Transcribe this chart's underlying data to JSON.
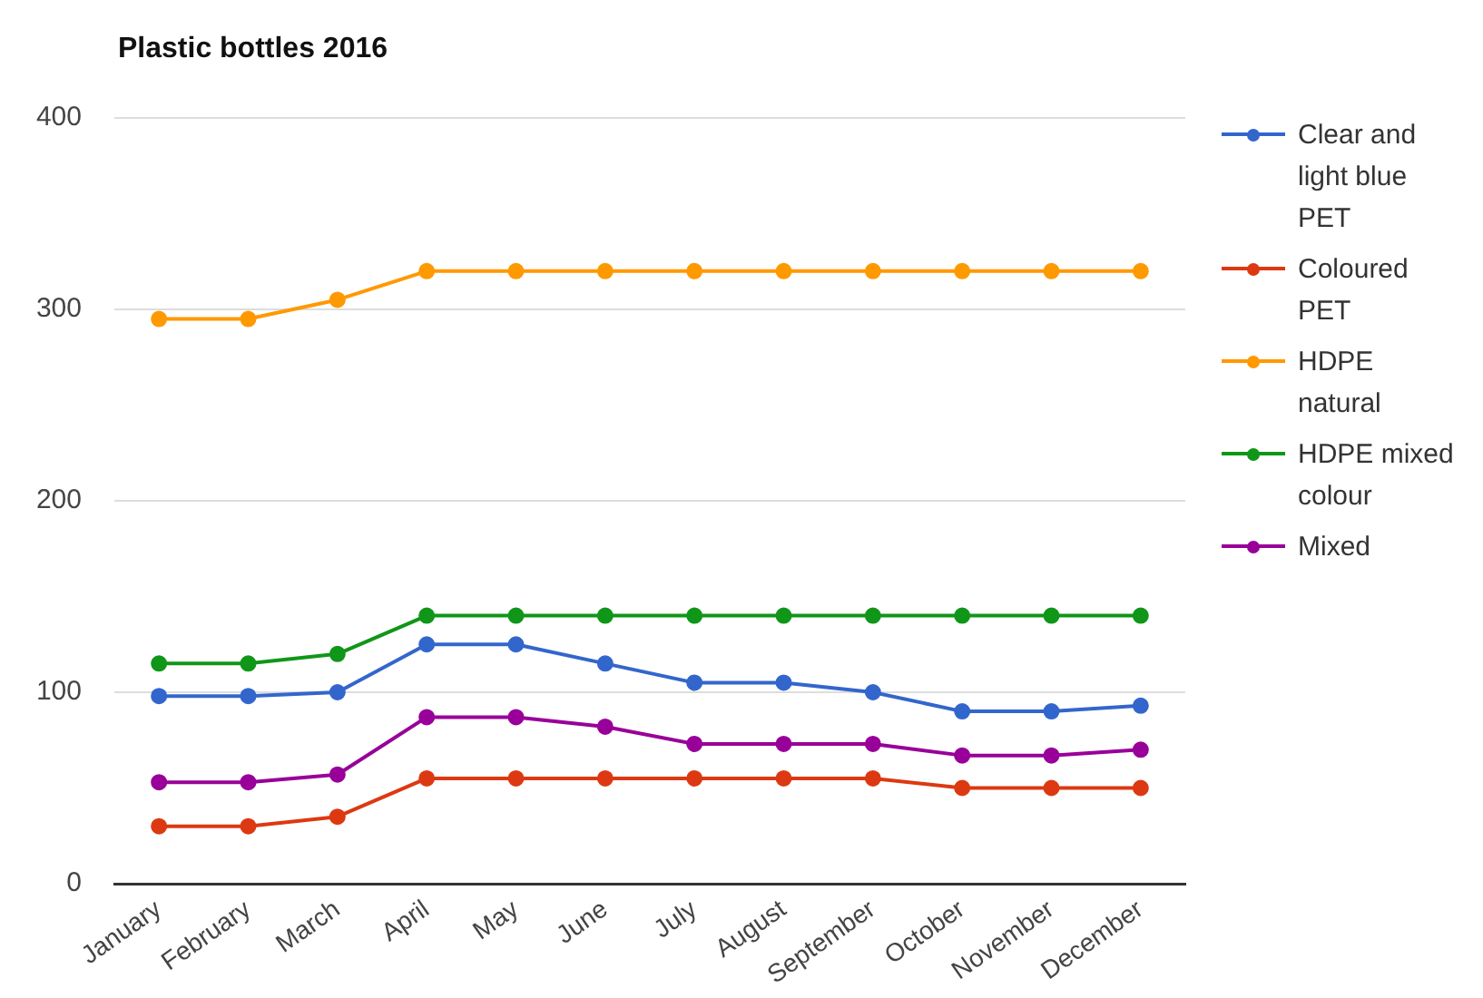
{
  "chart_data": {
    "type": "line",
    "title": "Plastic bottles 2016",
    "categories": [
      "January",
      "February",
      "March",
      "April",
      "May",
      "June",
      "July",
      "August",
      "September",
      "October",
      "November",
      "December"
    ],
    "series": [
      {
        "name": "Clear and light blue PET",
        "color": "#3366cc",
        "values": [
          98,
          98,
          100,
          125,
          125,
          115,
          105,
          105,
          100,
          90,
          90,
          93
        ]
      },
      {
        "name": "Coloured PET",
        "color": "#dc3912",
        "values": [
          30,
          30,
          35,
          55,
          55,
          55,
          55,
          55,
          55,
          50,
          50,
          50
        ]
      },
      {
        "name": "HDPE natural",
        "color": "#ff9900",
        "values": [
          295,
          295,
          305,
          320,
          320,
          320,
          320,
          320,
          320,
          320,
          320,
          320
        ]
      },
      {
        "name": "HDPE mixed colour",
        "color": "#109618",
        "values": [
          115,
          115,
          120,
          140,
          140,
          140,
          140,
          140,
          140,
          140,
          140,
          140
        ]
      },
      {
        "name": "Mixed",
        "color": "#990099",
        "values": [
          53,
          53,
          57,
          87,
          87,
          82,
          73,
          73,
          73,
          67,
          67,
          70
        ]
      }
    ],
    "ylim": [
      0,
      400
    ],
    "yticks": [
      0,
      100,
      200,
      300,
      400
    ],
    "grid": "y",
    "legend": "right",
    "marker": "circle",
    "line_style": "solid"
  }
}
